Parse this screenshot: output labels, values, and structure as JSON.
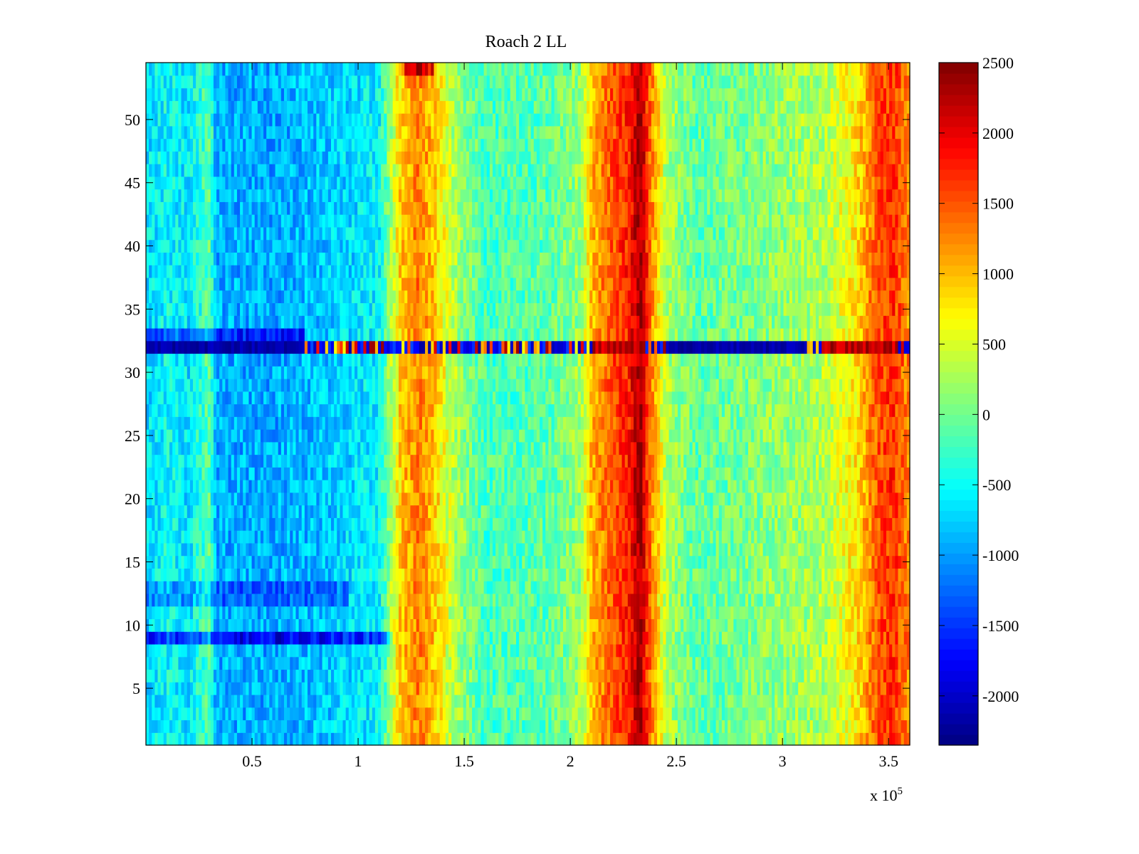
{
  "chart_data": {
    "type": "heatmap",
    "title": "Roach 2 LL",
    "xlabel": "",
    "ylabel": "",
    "x_exponent_base": "x 10",
    "x_exponent_power": "5",
    "xlim": [
      0,
      360000
    ],
    "ylim": [
      0.5,
      54.5
    ],
    "x_ticks": [
      {
        "value": 50000,
        "label": "0.5"
      },
      {
        "value": 100000,
        "label": "1"
      },
      {
        "value": 150000,
        "label": "1.5"
      },
      {
        "value": 200000,
        "label": "2"
      },
      {
        "value": 250000,
        "label": "2.5"
      },
      {
        "value": 300000,
        "label": "3"
      },
      {
        "value": 350000,
        "label": "3.5"
      }
    ],
    "y_ticks": [
      {
        "value": 5,
        "label": "5"
      },
      {
        "value": 10,
        "label": "10"
      },
      {
        "value": 15,
        "label": "15"
      },
      {
        "value": 20,
        "label": "20"
      },
      {
        "value": 25,
        "label": "25"
      },
      {
        "value": 30,
        "label": "30"
      },
      {
        "value": 35,
        "label": "35"
      },
      {
        "value": 40,
        "label": "40"
      },
      {
        "value": 45,
        "label": "45"
      },
      {
        "value": 50,
        "label": "50"
      }
    ],
    "rows": 54,
    "colormap": "jet",
    "clim": [
      -2350,
      2500
    ],
    "colorbar_ticks": [
      {
        "value": 2500,
        "label": "2500"
      },
      {
        "value": 2000,
        "label": "2000"
      },
      {
        "value": 1500,
        "label": "1500"
      },
      {
        "value": 1000,
        "label": "1000"
      },
      {
        "value": 500,
        "label": "500"
      },
      {
        "value": 0,
        "label": "0"
      },
      {
        "value": -500,
        "label": "-500"
      },
      {
        "value": -1000,
        "label": "-1000"
      },
      {
        "value": -1500,
        "label": "-1500"
      },
      {
        "value": -2000,
        "label": "-2000"
      }
    ],
    "column_profile": [
      {
        "x": 0,
        "v": -700
      },
      {
        "x": 10000,
        "v": -500
      },
      {
        "x": 20000,
        "v": -650
      },
      {
        "x": 30000,
        "v": -100
      },
      {
        "x": 33000,
        "v": -900
      },
      {
        "x": 60000,
        "v": -950
      },
      {
        "x": 90000,
        "v": -750
      },
      {
        "x": 110000,
        "v": -550
      },
      {
        "x": 115000,
        "v": 200
      },
      {
        "x": 120000,
        "v": 900
      },
      {
        "x": 128000,
        "v": 1300
      },
      {
        "x": 135000,
        "v": 1000
      },
      {
        "x": 145000,
        "v": 300
      },
      {
        "x": 160000,
        "v": -200
      },
      {
        "x": 190000,
        "v": -100
      },
      {
        "x": 205000,
        "v": 200
      },
      {
        "x": 210000,
        "v": 1000
      },
      {
        "x": 220000,
        "v": 1500
      },
      {
        "x": 228000,
        "v": 1800
      },
      {
        "x": 233000,
        "v": 2400
      },
      {
        "x": 238000,
        "v": 1300
      },
      {
        "x": 245000,
        "v": 300
      },
      {
        "x": 260000,
        "v": -100
      },
      {
        "x": 290000,
        "v": 100
      },
      {
        "x": 320000,
        "v": 300
      },
      {
        "x": 335000,
        "v": 800
      },
      {
        "x": 345000,
        "v": 1500
      },
      {
        "x": 352000,
        "v": 1700
      },
      {
        "x": 360000,
        "v": 1200
      }
    ],
    "row_features": [
      {
        "row": 32,
        "description": "saturated row",
        "low_segments": [
          [
            0,
            75000
          ],
          [
            245000,
            310000
          ]
        ],
        "high_segments": [
          [
            210000,
            235000
          ],
          [
            320000,
            355000
          ]
        ]
      },
      {
        "row": 33,
        "offset": -700,
        "x_range": [
          0,
          75000
        ]
      },
      {
        "row": 9,
        "offset": -900,
        "x_range": [
          0,
          115000
        ]
      },
      {
        "row": 12,
        "offset": -400,
        "x_range": [
          0,
          95000
        ]
      },
      {
        "row": 13,
        "offset": -400,
        "x_range": [
          0,
          95000
        ]
      },
      {
        "row": 54,
        "offset": 900,
        "x_range": [
          122000,
          135000
        ]
      }
    ]
  }
}
